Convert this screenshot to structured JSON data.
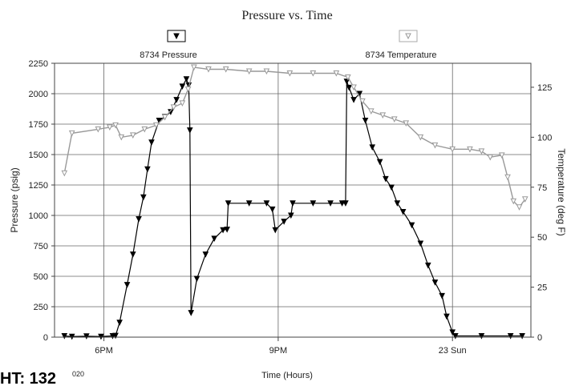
{
  "chart_data": {
    "type": "line",
    "title": "Pressure vs. Time",
    "xlabel": "Time (Hours)",
    "ylabel_left": "Pressure (psig)",
    "ylabel_right": "Temperature (deg F)",
    "x_unit": "hours from 6PM",
    "x_ticks": [
      {
        "x": 0,
        "label": "6PM"
      },
      {
        "x": 3,
        "label": "9PM"
      },
      {
        "x": 6,
        "label": "23 Sun"
      }
    ],
    "xlim": [
      -0.85,
      7.35
    ],
    "ylim_left": [
      0,
      2250
    ],
    "yticks_left": [
      0,
      250,
      500,
      750,
      1000,
      1250,
      1500,
      1750,
      2000,
      2250
    ],
    "ylim_right": [
      0,
      137
    ],
    "yticks_right": [
      0,
      25,
      50,
      75,
      100,
      125
    ],
    "grid": true,
    "legend_placement": "top",
    "footer_text": "HT: 132",
    "footer_small": "020",
    "series": [
      {
        "name": "8734 Pressure",
        "axis": "left",
        "color": "#000000",
        "marker": "filled-triangle-down",
        "points": [
          [
            -0.68,
            10
          ],
          [
            -0.55,
            5
          ],
          [
            -0.3,
            8
          ],
          [
            -0.05,
            5
          ],
          [
            0.15,
            10
          ],
          [
            0.2,
            12
          ],
          [
            0.27,
            120
          ],
          [
            0.4,
            430
          ],
          [
            0.5,
            680
          ],
          [
            0.6,
            970
          ],
          [
            0.68,
            1150
          ],
          [
            0.75,
            1380
          ],
          [
            0.82,
            1600
          ],
          [
            0.95,
            1780
          ],
          [
            1.05,
            1810
          ],
          [
            1.15,
            1850
          ],
          [
            1.25,
            1950
          ],
          [
            1.35,
            2060
          ],
          [
            1.42,
            2120
          ],
          [
            1.46,
            2070
          ],
          [
            1.48,
            1700
          ],
          [
            1.5,
            200
          ],
          [
            1.6,
            480
          ],
          [
            1.75,
            680
          ],
          [
            1.9,
            810
          ],
          [
            2.05,
            880
          ],
          [
            2.12,
            885
          ],
          [
            2.14,
            1100
          ],
          [
            2.5,
            1100
          ],
          [
            2.8,
            1100
          ],
          [
            2.9,
            1050
          ],
          [
            2.95,
            880
          ],
          [
            3.1,
            950
          ],
          [
            3.22,
            1000
          ],
          [
            3.25,
            1100
          ],
          [
            3.6,
            1100
          ],
          [
            3.9,
            1100
          ],
          [
            4.1,
            1100
          ],
          [
            4.16,
            1100
          ],
          [
            4.18,
            2100
          ],
          [
            4.22,
            2050
          ],
          [
            4.3,
            1950
          ],
          [
            4.4,
            2000
          ],
          [
            4.5,
            1780
          ],
          [
            4.62,
            1560
          ],
          [
            4.75,
            1440
          ],
          [
            4.85,
            1300
          ],
          [
            4.95,
            1230
          ],
          [
            5.05,
            1100
          ],
          [
            5.15,
            1030
          ],
          [
            5.3,
            920
          ],
          [
            5.45,
            770
          ],
          [
            5.58,
            590
          ],
          [
            5.7,
            450
          ],
          [
            5.82,
            340
          ],
          [
            5.9,
            170
          ],
          [
            6.0,
            40
          ],
          [
            6.05,
            10
          ],
          [
            6.5,
            10
          ],
          [
            7.0,
            10
          ],
          [
            7.2,
            10
          ]
        ]
      },
      {
        "name": "8734 Temperature",
        "axis": "right",
        "color": "#999999",
        "marker": "hollow-triangle-down",
        "points": [
          [
            -0.68,
            82
          ],
          [
            -0.55,
            102
          ],
          [
            -0.1,
            104
          ],
          [
            0.1,
            105
          ],
          [
            0.2,
            106
          ],
          [
            0.3,
            100
          ],
          [
            0.5,
            101
          ],
          [
            0.7,
            104
          ],
          [
            0.9,
            106
          ],
          [
            1.05,
            110
          ],
          [
            1.2,
            115
          ],
          [
            1.35,
            117
          ],
          [
            1.45,
            124
          ],
          [
            1.55,
            135
          ],
          [
            1.8,
            134
          ],
          [
            2.1,
            134
          ],
          [
            2.5,
            133
          ],
          [
            2.8,
            133
          ],
          [
            3.2,
            132
          ],
          [
            3.6,
            132
          ],
          [
            4.0,
            132
          ],
          [
            4.2,
            130
          ],
          [
            4.3,
            125
          ],
          [
            4.45,
            118
          ],
          [
            4.6,
            113
          ],
          [
            4.8,
            111
          ],
          [
            5.0,
            109
          ],
          [
            5.2,
            107
          ],
          [
            5.45,
            100
          ],
          [
            5.7,
            96
          ],
          [
            6.0,
            94
          ],
          [
            6.3,
            94
          ],
          [
            6.5,
            93
          ],
          [
            6.65,
            90
          ],
          [
            6.85,
            91
          ],
          [
            6.95,
            80
          ],
          [
            7.05,
            68
          ],
          [
            7.15,
            65
          ],
          [
            7.25,
            69
          ]
        ]
      }
    ]
  }
}
